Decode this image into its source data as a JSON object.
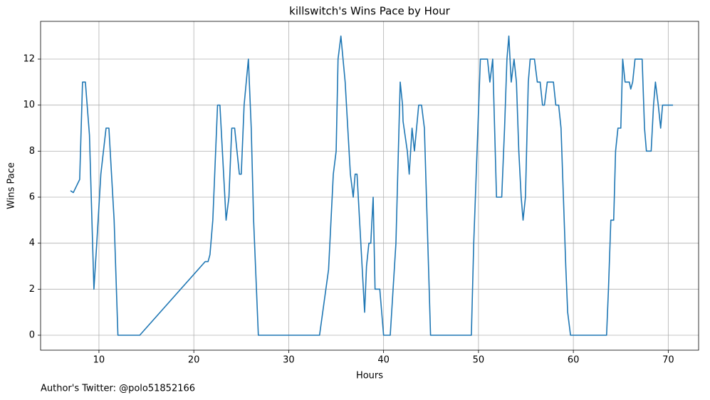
{
  "chart_data": {
    "type": "line",
    "title": "killswitch's Wins Pace by Hour",
    "xlabel": "Hours",
    "ylabel": "Wins Pace",
    "footnote": "Author's Twitter: @polo51852166",
    "color": "#1f77b4",
    "grid": true,
    "xlim": [
      3.85,
      73.2
    ],
    "ylim": [
      -0.65,
      13.64
    ],
    "xticks": [
      10,
      20,
      30,
      40,
      50,
      60,
      70
    ],
    "yticks": [
      0,
      2,
      4,
      6,
      8,
      10,
      12
    ],
    "x": [
      7.0,
      7.3,
      7.97,
      8.27,
      8.57,
      9.0,
      9.47,
      9.77,
      10.2,
      10.75,
      11.05,
      11.6,
      12.0,
      14.3,
      21.2,
      21.5,
      21.7,
      22.0,
      22.5,
      22.75,
      23.4,
      23.7,
      24.0,
      24.3,
      24.8,
      25.0,
      25.3,
      25.75,
      26.05,
      26.3,
      26.5,
      26.8,
      33.25,
      34.2,
      34.7,
      35.0,
      35.2,
      35.5,
      35.95,
      36.5,
      36.8,
      37.0,
      37.2,
      38.0,
      38.2,
      38.45,
      38.65,
      38.9,
      39.1,
      39.3,
      39.6,
      40.0,
      40.7,
      41.0,
      41.3,
      41.75,
      42.0,
      42.05,
      42.5,
      42.7,
      43.0,
      43.25,
      43.7,
      44.0,
      44.3,
      44.95,
      49.25,
      49.5,
      50.2,
      50.95,
      51.2,
      51.5,
      51.9,
      52.45,
      52.75,
      53.0,
      53.2,
      53.45,
      53.75,
      54.0,
      54.25,
      54.5,
      54.7,
      54.95,
      55.25,
      55.45,
      55.9,
      56.2,
      56.5,
      56.75,
      56.95,
      57.25,
      57.9,
      58.15,
      58.45,
      58.7,
      58.95,
      59.2,
      59.4,
      59.7,
      63.5,
      63.7,
      63.95,
      64.25,
      64.45,
      64.7,
      65.0,
      65.2,
      65.45,
      65.9,
      66.05,
      66.25,
      66.5,
      67.25,
      67.5,
      67.7,
      68.2,
      68.45,
      68.65,
      68.95,
      69.2,
      69.4,
      69.95,
      70.5
    ],
    "values": [
      6.28,
      6.2,
      6.77,
      11,
      11,
      8.7,
      2,
      4,
      7,
      9,
      9,
      5,
      0,
      0,
      3.2,
      3.2,
      3.5,
      5,
      10,
      10,
      5,
      6,
      9,
      9,
      7,
      7,
      10,
      12,
      9,
      5,
      3,
      0,
      0,
      2.85,
      7,
      8,
      12,
      13,
      11,
      7,
      6,
      7,
      7,
      1,
      3,
      4,
      4,
      6,
      2,
      2,
      2,
      0,
      0,
      2,
      4,
      11,
      10,
      9.3,
      8,
      7,
      9,
      8,
      10,
      10,
      9,
      0,
      0,
      4,
      12,
      12,
      11,
      12,
      6,
      6,
      9,
      12,
      13,
      11,
      12,
      11,
      8,
      6,
      5,
      6,
      11,
      12,
      12,
      11,
      11,
      10,
      10,
      11,
      11,
      10,
      10,
      9,
      6,
      3,
      1,
      0,
      0,
      2,
      5,
      5,
      8,
      9,
      9,
      12,
      11,
      11,
      10.7,
      11,
      12,
      12,
      9,
      8,
      8,
      10,
      11,
      10,
      9,
      10,
      10,
      10
    ]
  }
}
